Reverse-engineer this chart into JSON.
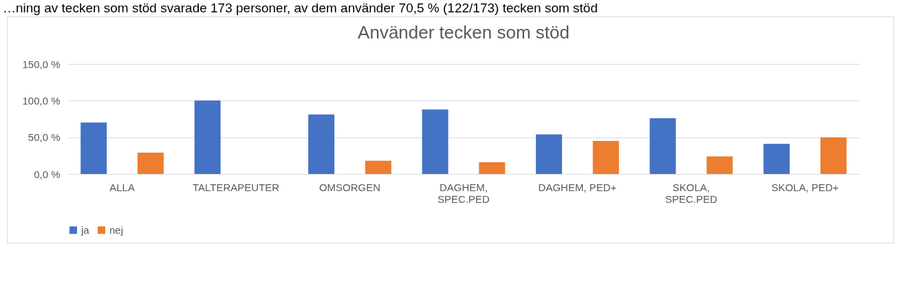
{
  "chart_data": {
    "type": "bar",
    "title": "Använder tecken som stöd",
    "annotations": [
      "…ning av tecken som stöd svarade 173 personer, av dem använder 70,5 % (122/173) tecken som stöd"
    ],
    "categories": [
      "ALLA",
      "TALTERAPEUTER",
      "OMSORGEN",
      "DAGHEM, SPEC.PED",
      "DAGHEM, PED+",
      "SKOLA, SPEC.PED",
      "SKOLA, PED+"
    ],
    "series": [
      {
        "name": "ja",
        "color": "#4472c4",
        "values": [
          70,
          100,
          81,
          88,
          54,
          76,
          41
        ]
      },
      {
        "name": "nej",
        "color": "#ed7d31",
        "values": [
          29,
          0,
          18,
          16,
          45,
          24,
          50
        ]
      }
    ],
    "ylim": [
      0,
      150
    ],
    "yticks": [
      {
        "value": 0,
        "label": "0,0 %"
      },
      {
        "value": 50,
        "label": "50,0 %"
      },
      {
        "value": 100,
        "label": "100,0 %"
      },
      {
        "value": 150,
        "label": "150,0 %"
      }
    ],
    "grid": "y",
    "legend": "bottom"
  }
}
